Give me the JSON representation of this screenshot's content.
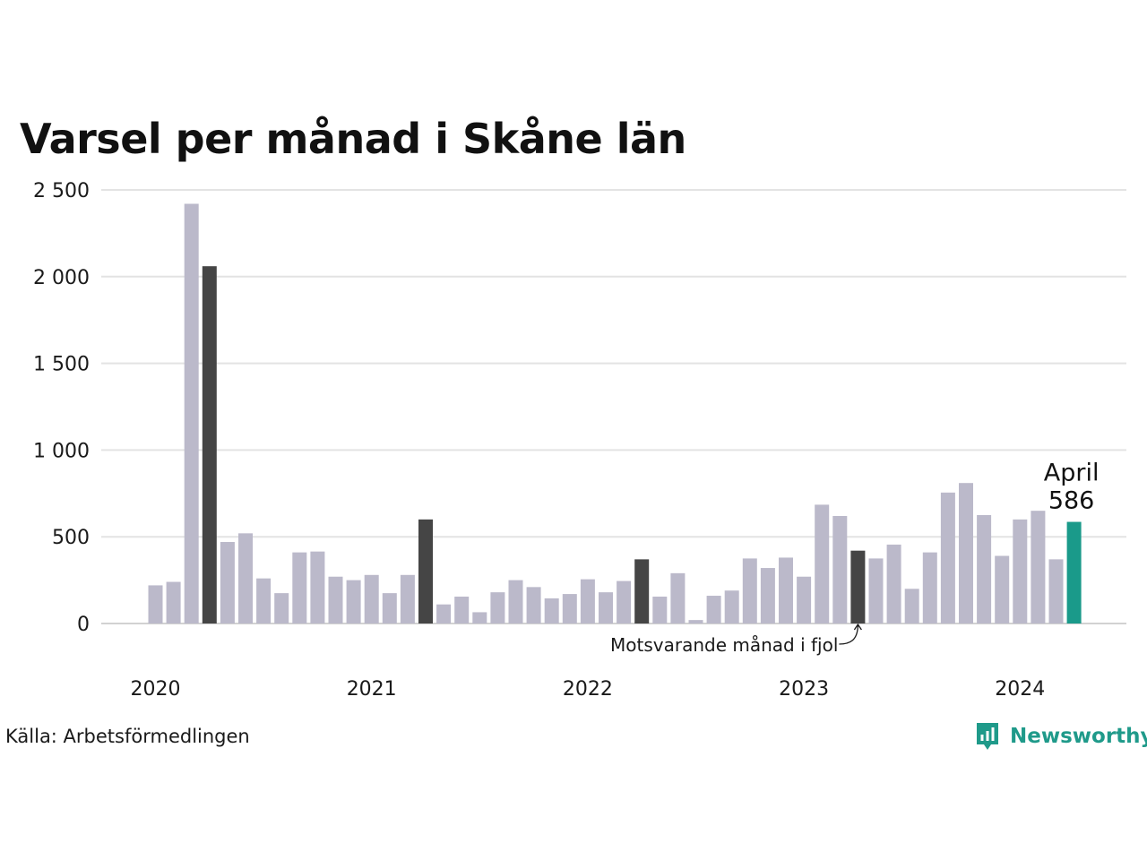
{
  "chart_data": {
    "type": "bar",
    "title": "Varsel per månad i Skåne län",
    "source": "Källa: Arbetsförmedlingen",
    "brand": "Newsworthy",
    "annotation": "Motsvarande månad i fjol",
    "callout": {
      "label": "April",
      "value_text": "586"
    },
    "ylim": [
      0,
      2500
    ],
    "y_ticks": [
      0,
      500,
      1000,
      1500,
      2000,
      2500
    ],
    "y_tick_labels": [
      "0",
      "500",
      "1 000",
      "1 500",
      "2 000",
      "2 500"
    ],
    "x_tick_labels": [
      "2020",
      "2021",
      "2022",
      "2023",
      "2024"
    ],
    "x_tick_month_index": [
      0,
      12,
      24,
      36,
      48
    ],
    "grid": true,
    "legend": "none",
    "colors": {
      "default": "#bbb9ca",
      "same_month_previous_years": "#454545",
      "latest": "#1a9a8a",
      "grid": "#e3e3e3",
      "brand": "#1f9a8a"
    },
    "categories": [
      "2020-01",
      "2020-02",
      "2020-03",
      "2020-04",
      "2020-05",
      "2020-06",
      "2020-07",
      "2020-08",
      "2020-09",
      "2020-10",
      "2020-11",
      "2020-12",
      "2021-01",
      "2021-02",
      "2021-03",
      "2021-04",
      "2021-05",
      "2021-06",
      "2021-07",
      "2021-08",
      "2021-09",
      "2021-10",
      "2021-11",
      "2021-12",
      "2022-01",
      "2022-02",
      "2022-03",
      "2022-04",
      "2022-05",
      "2022-06",
      "2022-07",
      "2022-08",
      "2022-09",
      "2022-10",
      "2022-11",
      "2022-12",
      "2023-01",
      "2023-02",
      "2023-03",
      "2023-04",
      "2023-05",
      "2023-06",
      "2023-07",
      "2023-08",
      "2023-09",
      "2023-10",
      "2023-11",
      "2023-12",
      "2024-01",
      "2024-02",
      "2024-03",
      "2024-04"
    ],
    "values": [
      220,
      240,
      2420,
      2060,
      470,
      520,
      260,
      175,
      410,
      415,
      270,
      250,
      280,
      175,
      280,
      600,
      110,
      155,
      65,
      180,
      250,
      210,
      145,
      170,
      255,
      180,
      245,
      370,
      155,
      290,
      20,
      160,
      190,
      375,
      320,
      380,
      270,
      685,
      620,
      420,
      375,
      455,
      200,
      410,
      755,
      810,
      625,
      390,
      600,
      650,
      370,
      586
    ],
    "highlight": [
      "default",
      "default",
      "default",
      "same_month_previous_years",
      "default",
      "default",
      "default",
      "default",
      "default",
      "default",
      "default",
      "default",
      "default",
      "default",
      "default",
      "same_month_previous_years",
      "default",
      "default",
      "default",
      "default",
      "default",
      "default",
      "default",
      "default",
      "default",
      "default",
      "default",
      "same_month_previous_years",
      "default",
      "default",
      "default",
      "default",
      "default",
      "default",
      "default",
      "default",
      "default",
      "default",
      "default",
      "same_month_previous_years",
      "default",
      "default",
      "default",
      "default",
      "default",
      "default",
      "default",
      "default",
      "default",
      "default",
      "default",
      "latest"
    ]
  }
}
